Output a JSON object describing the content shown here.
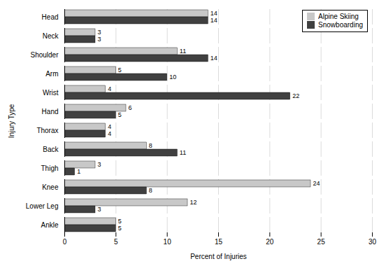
{
  "chart_data": {
    "type": "bar",
    "orientation": "horizontal",
    "xlabel": "Percent of Injuries",
    "ylabel": "Injury Type",
    "categories": [
      "Head",
      "Neck",
      "Shoulder",
      "Arm",
      "Wrist",
      "Hand",
      "Thorax",
      "Back",
      "Thigh",
      "Knee",
      "Lower Leg",
      "Ankle"
    ],
    "series": [
      {
        "name": "Alpine Skiing",
        "color": "#c8c8c8",
        "values": [
          14,
          3,
          11,
          5,
          4,
          6,
          4,
          8,
          3,
          24,
          12,
          5
        ]
      },
      {
        "name": "Snowboarding",
        "color": "#404040",
        "values": [
          14,
          3,
          14,
          10,
          22,
          5,
          4,
          11,
          1,
          8,
          3,
          5
        ]
      }
    ],
    "xlim": [
      0,
      30
    ],
    "xticks": [
      0,
      5,
      10,
      15,
      20,
      25,
      30
    ],
    "grid": true,
    "legend": "upper right",
    "data_labels": true
  }
}
